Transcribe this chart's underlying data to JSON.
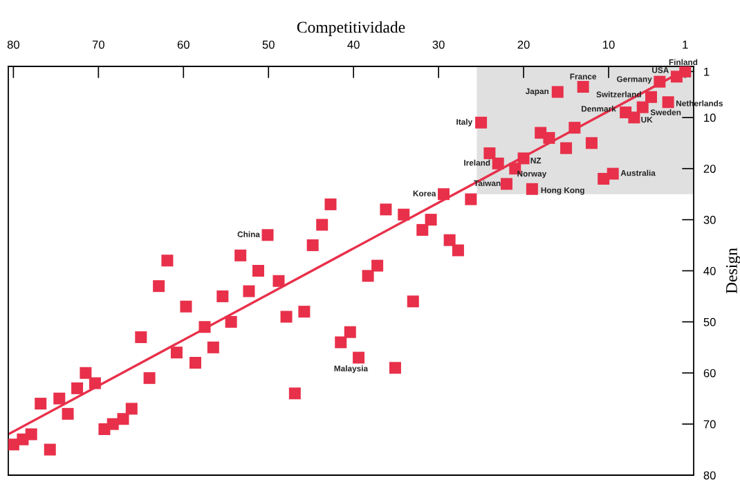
{
  "chart_data": {
    "type": "scatter",
    "xlabel": "Competitividade",
    "ylabel": "Design",
    "xlim": [
      80.6,
      0
    ],
    "ylim": [
      80,
      0
    ],
    "xticks": [
      80,
      70,
      60,
      50,
      40,
      30,
      20,
      10,
      1
    ],
    "yticks": [
      1,
      10,
      20,
      30,
      40,
      50,
      60,
      70,
      80
    ],
    "grid": false,
    "series": [
      {
        "type": "area",
        "color": "#e0e0e0",
        "x": [
          25.5,
          0
        ],
        "values": [
          25,
          25
        ]
      },
      {
        "type": "line",
        "color": "#e8304a",
        "x": [
          80.6,
          0.8
        ],
        "values": [
          72,
          0.5
        ]
      },
      {
        "color": "#e8304a",
        "marker": "square",
        "x": [
          1,
          2,
          4,
          13,
          16,
          5,
          3,
          6,
          8,
          7,
          25,
          18,
          17,
          14,
          15,
          12,
          24,
          23,
          20,
          21,
          9.5,
          10.6,
          22,
          19,
          29.4,
          26.2,
          42.7,
          43.7,
          44.8,
          36.2,
          34.1,
          30.9,
          31.9,
          28.7,
          27.7,
          37.2,
          38.3,
          33,
          45.8,
          47.9,
          40.4,
          41.5,
          39.4,
          35.1,
          46.9,
          48.8,
          50.1,
          53.3,
          51.2,
          52.3,
          55.4,
          59.7,
          61.9,
          62.9,
          54.4,
          57.5,
          65,
          60.8,
          56.5,
          58.6,
          64,
          71.5,
          70.4,
          72.5,
          74.6,
          76.8,
          73.6,
          66.1,
          67.1,
          68.3,
          69.3,
          77.9,
          78.9,
          80,
          75.7
        ],
        "values": [
          1,
          2,
          3,
          4,
          5,
          6,
          7,
          8,
          9,
          10,
          11,
          13,
          14,
          12,
          16,
          15,
          17,
          19,
          18,
          20,
          21,
          22,
          23,
          24,
          25,
          26,
          27,
          31,
          35,
          28,
          29,
          30,
          32,
          34,
          36,
          39,
          41,
          46,
          48,
          49,
          52,
          54,
          57,
          59,
          64,
          42,
          33,
          37,
          40,
          44,
          45,
          47,
          38,
          43,
          50,
          51,
          53,
          56,
          55,
          58,
          61,
          60,
          62,
          63,
          65,
          66,
          68,
          67,
          69,
          70,
          71,
          72,
          73,
          74,
          75
        ]
      }
    ],
    "annotations": [
      {
        "text": "Finland",
        "x": 1,
        "y": 1
      },
      {
        "text": "USA",
        "x": 2,
        "y": 2
      },
      {
        "text": "Germany",
        "x": 4,
        "y": 3
      },
      {
        "text": "France",
        "x": 13,
        "y": 4
      },
      {
        "text": "Japan",
        "x": 16,
        "y": 5
      },
      {
        "text": "Switzerland",
        "x": 5,
        "y": 6
      },
      {
        "text": "Netherlands",
        "x": 3,
        "y": 7
      },
      {
        "text": "Sweden",
        "x": 6,
        "y": 8
      },
      {
        "text": "Denmark",
        "x": 8,
        "y": 9
      },
      {
        "text": "UK",
        "x": 7,
        "y": 10
      },
      {
        "text": "Italy",
        "x": 25,
        "y": 11
      },
      {
        "text": "Ireland",
        "x": 23,
        "y": 19
      },
      {
        "text": "NZ",
        "x": 20,
        "y": 18
      },
      {
        "text": "Norway",
        "x": 21,
        "y": 20
      },
      {
        "text": "Australia",
        "x": 9.5,
        "y": 21
      },
      {
        "text": "Taiwan",
        "x": 22,
        "y": 23
      },
      {
        "text": "Hong Kong",
        "x": 19,
        "y": 24
      },
      {
        "text": "Korea",
        "x": 29.4,
        "y": 25
      },
      {
        "text": "China",
        "x": 50.1,
        "y": 33
      },
      {
        "text": "Malaysia",
        "x": 39.4,
        "y": 57
      }
    ]
  }
}
